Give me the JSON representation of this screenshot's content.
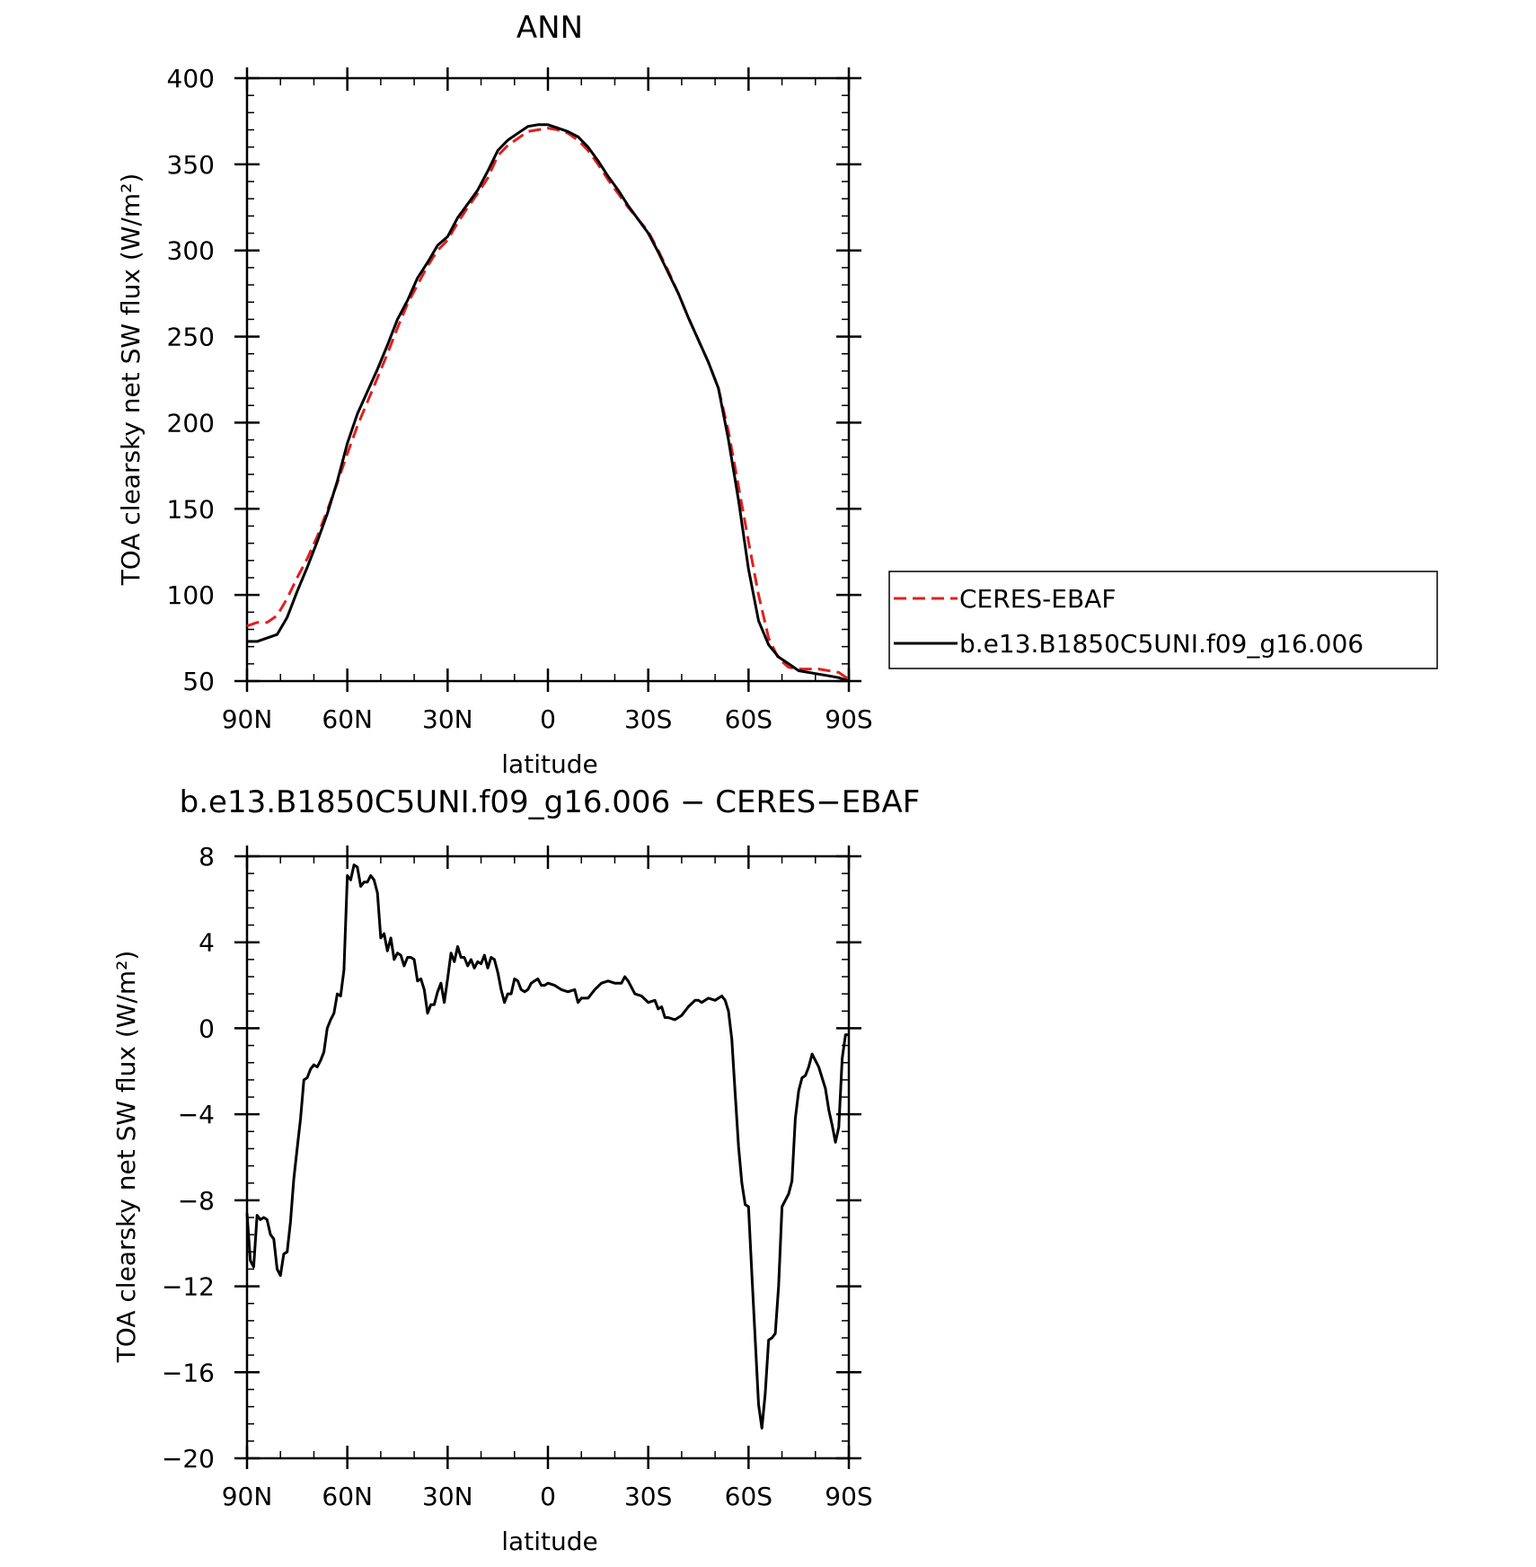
{
  "chart_data": [
    {
      "type": "line",
      "title": "ANN",
      "xlabel": "latitude",
      "ylabel": "TOA clearsky net SW flux (W/m²)",
      "x_tick_labels": [
        "90N",
        "60N",
        "30N",
        "0",
        "30S",
        "60S",
        "90S"
      ],
      "x_tick_values": [
        90,
        60,
        30,
        0,
        -30,
        -60,
        -90
      ],
      "xlim": [
        90,
        -90
      ],
      "ylim": [
        50,
        400
      ],
      "y_ticks": [
        50,
        100,
        150,
        200,
        250,
        300,
        350,
        400
      ],
      "legend_position": "right",
      "grid": false,
      "series": [
        {
          "name": "CERES-EBAF",
          "color": "#e02020",
          "style": "dashed",
          "x": [
            90,
            87,
            84,
            81,
            78,
            75,
            72,
            69,
            66,
            63,
            60,
            57,
            54,
            51,
            48,
            45,
            42,
            39,
            36,
            33,
            30,
            27,
            24,
            21,
            18,
            15,
            12,
            9,
            6,
            3,
            0,
            -3,
            -6,
            -9,
            -12,
            -15,
            -18,
            -21,
            -24,
            -27,
            -30,
            -33,
            -36,
            -39,
            -42,
            -45,
            -48,
            -51,
            -54,
            -57,
            -60,
            -63,
            -66,
            -69,
            -72,
            -75,
            -78,
            -81,
            -84,
            -87,
            -90
          ],
          "y": [
            82,
            84,
            84,
            88,
            98,
            110,
            121,
            134,
            149,
            165,
            182,
            198,
            212,
            226,
            240,
            255,
            269,
            280,
            291,
            300,
            306,
            316,
            325,
            333,
            342,
            355,
            361,
            365,
            369,
            370,
            371,
            370,
            368,
            364,
            358,
            350,
            341,
            333,
            325,
            318,
            311,
            300,
            288,
            275,
            261,
            248,
            235,
            220,
            195,
            163,
            131,
            100,
            75,
            63,
            58,
            57,
            57,
            57,
            56,
            55,
            51
          ]
        },
        {
          "name": "b.e13.B1850C5UNI.f09_g16.006",
          "color": "#000000",
          "style": "solid",
          "x": [
            90,
            87,
            84,
            81,
            78,
            75,
            72,
            69,
            66,
            63,
            60,
            57,
            54,
            51,
            48,
            45,
            42,
            39,
            36,
            33,
            30,
            27,
            24,
            21,
            18,
            15,
            12,
            9,
            6,
            3,
            0,
            -3,
            -6,
            -9,
            -12,
            -15,
            -18,
            -21,
            -24,
            -27,
            -30,
            -33,
            -36,
            -39,
            -42,
            -45,
            -48,
            -51,
            -54,
            -57,
            -60,
            -63,
            -66,
            -69,
            -72,
            -75,
            -78,
            -81,
            -84,
            -87,
            -90
          ],
          "y": [
            73,
            73,
            75,
            77,
            87,
            102,
            116,
            131,
            147,
            166,
            188,
            205,
            218,
            231,
            245,
            260,
            271,
            284,
            293,
            303,
            308,
            319,
            327,
            335,
            346,
            358,
            364,
            368,
            372,
            373,
            373,
            371,
            369,
            366,
            360,
            352,
            343,
            335,
            326,
            318,
            310,
            299,
            287,
            275,
            261,
            248,
            235,
            220,
            190,
            155,
            115,
            85,
            71,
            64,
            60,
            56,
            55,
            54,
            53,
            52,
            50
          ]
        }
      ]
    },
    {
      "type": "line",
      "title": "b.e13.B1850C5UNI.f09_g16.006 − CERES−EBAF",
      "xlabel": "latitude",
      "ylabel": "TOA clearsky net SW flux (W/m²)",
      "x_tick_labels": [
        "90N",
        "60N",
        "30N",
        "0",
        "30S",
        "60S",
        "90S"
      ],
      "x_tick_values": [
        90,
        60,
        30,
        0,
        -30,
        -60,
        -90
      ],
      "xlim": [
        90,
        -90
      ],
      "ylim": [
        -20,
        8
      ],
      "y_ticks": [
        8,
        4,
        0,
        -4,
        -8,
        -12,
        -16,
        -20
      ],
      "y_tick_labels": [
        "8",
        "4",
        "0",
        "−4",
        "−8",
        "−12",
        "−16",
        "−20"
      ],
      "grid": false,
      "series": [
        {
          "color": "#000000",
          "style": "solid",
          "x": [
            90,
            89,
            88,
            87,
            86,
            85,
            84,
            83,
            82,
            81,
            80,
            79,
            78,
            77,
            76,
            75,
            74,
            73,
            72,
            71,
            70,
            69,
            68,
            67,
            66,
            65,
            64,
            63,
            62,
            61,
            60,
            59,
            58,
            57,
            56,
            55,
            54,
            53,
            52,
            51,
            50,
            49,
            48,
            47,
            46,
            45,
            44,
            43,
            42,
            41,
            40,
            39,
            38,
            37,
            36,
            35,
            34,
            33,
            32,
            31,
            30,
            29,
            28,
            27,
            26,
            25,
            24,
            23,
            22,
            21,
            20,
            19,
            18,
            17,
            16,
            15,
            14,
            13,
            12,
            11,
            10,
            9,
            8,
            7,
            6,
            5,
            4,
            3,
            2,
            1,
            0,
            -2,
            -4,
            -6,
            -8,
            -9,
            -10,
            -12,
            -14,
            -16,
            -18,
            -20,
            -22,
            -23,
            -24,
            -26,
            -28,
            -30,
            -32,
            -33,
            -34,
            -35,
            -36,
            -38,
            -40,
            -42,
            -44,
            -45,
            -46,
            -48,
            -50,
            -52,
            -53,
            -54,
            -55,
            -56,
            -57,
            -58,
            -59,
            -60,
            -61,
            -62,
            -63,
            -64,
            -65,
            -66,
            -67,
            -68,
            -69,
            -70,
            -72,
            -73,
            -74,
            -75,
            -76,
            -77,
            -78,
            -79,
            -80,
            -81,
            -82,
            -83,
            -84,
            -85,
            -86,
            -87,
            -88,
            -89,
            -90
          ],
          "y": [
            -8.6,
            -10.8,
            -11.1,
            -8.7,
            -8.9,
            -8.8,
            -8.9,
            -9.6,
            -9.8,
            -11.2,
            -11.5,
            -10.5,
            -10.4,
            -9.0,
            -7.0,
            -5.6,
            -4.2,
            -2.4,
            -2.3,
            -1.9,
            -1.7,
            -1.8,
            -1.5,
            -1.1,
            0.0,
            0.4,
            0.7,
            1.6,
            1.5,
            2.7,
            7.1,
            6.9,
            7.6,
            7.5,
            6.6,
            6.8,
            6.8,
            7.1,
            6.9,
            6.3,
            4.2,
            4.4,
            3.6,
            4.2,
            3.2,
            3.5,
            3.4,
            2.9,
            3.3,
            3.3,
            3.2,
            2.2,
            2.3,
            1.8,
            0.7,
            1.1,
            1.1,
            1.7,
            2.1,
            1.2,
            2.3,
            3.5,
            3.1,
            3.8,
            3.3,
            3.3,
            2.9,
            3.2,
            2.8,
            3.1,
            3.0,
            3.4,
            2.8,
            3.3,
            3.2,
            2.6,
            1.8,
            1.2,
            1.6,
            1.6,
            2.3,
            2.2,
            1.8,
            1.7,
            1.8,
            2.1,
            2.2,
            2.3,
            2.0,
            2.0,
            2.1,
            2.0,
            1.8,
            1.7,
            1.8,
            1.2,
            1.4,
            1.4,
            1.8,
            2.1,
            2.2,
            2.1,
            2.1,
            2.4,
            2.2,
            1.6,
            1.5,
            1.2,
            1.3,
            0.9,
            1.0,
            0.5,
            0.5,
            0.4,
            0.6,
            1.0,
            1.3,
            1.3,
            1.2,
            1.4,
            1.3,
            1.5,
            1.3,
            0.8,
            -0.5,
            -3.0,
            -5.5,
            -7.2,
            -8.2,
            -8.3,
            -11.5,
            -14.5,
            -17.5,
            -18.6,
            -17.0,
            -14.5,
            -14.4,
            -14.2,
            -12.0,
            -8.3,
            -7.7,
            -7.1,
            -4.2,
            -2.9,
            -2.3,
            -2.2,
            -1.8,
            -1.2,
            -1.5,
            -1.8,
            -2.3,
            -2.8,
            -3.8,
            -4.5,
            -5.3,
            -4.6,
            -1.4,
            -0.3,
            -0.3
          ]
        }
      ]
    }
  ]
}
